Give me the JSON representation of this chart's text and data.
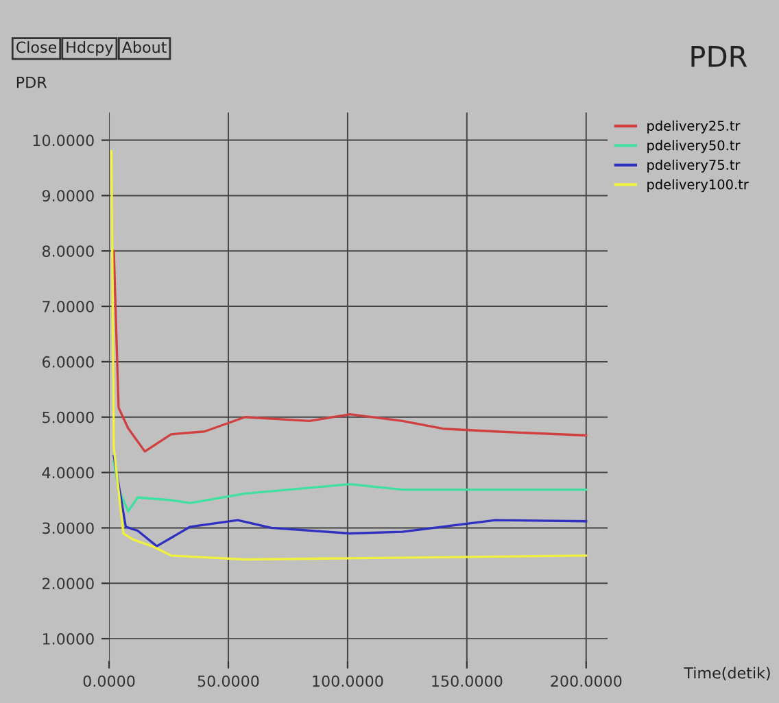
{
  "chart_data": {
    "type": "line",
    "title": "PDR",
    "ylabel": "PDR",
    "xlabel": "Time(detik)",
    "annotations": [
      "Close",
      "Hdcpy",
      "About"
    ],
    "xlim": [
      0,
      209
    ],
    "ylim": [
      0.6,
      10.5
    ],
    "xticks": [
      {
        "value": 0,
        "label": "0.0000"
      },
      {
        "value": 50,
        "label": "50.0000"
      },
      {
        "value": 100,
        "label": "100.0000"
      },
      {
        "value": 150,
        "label": "150.0000"
      },
      {
        "value": 200,
        "label": "200.0000"
      }
    ],
    "yticks": [
      {
        "value": 1,
        "label": "1.0000"
      },
      {
        "value": 2,
        "label": "2.0000"
      },
      {
        "value": 3,
        "label": "3.0000"
      },
      {
        "value": 4,
        "label": "4.0000"
      },
      {
        "value": 5,
        "label": "5.0000"
      },
      {
        "value": 6,
        "label": "6.0000"
      },
      {
        "value": 7,
        "label": "7.0000"
      },
      {
        "value": 8,
        "label": "8.0000"
      },
      {
        "value": 9,
        "label": "9.0000"
      },
      {
        "value": 10,
        "label": "10.0000"
      }
    ],
    "grid": true,
    "legend": "top right",
    "marker": "none",
    "line_style": "solid",
    "series": [
      {
        "name": "pdelivery25.tr",
        "color": "#d04040",
        "x": [
          2,
          4,
          8,
          15,
          26,
          40,
          57,
          84,
          101,
          123,
          140,
          162,
          200
        ],
        "values": [
          8.0,
          5.17,
          4.8,
          4.38,
          4.69,
          4.74,
          5.0,
          4.93,
          5.05,
          4.93,
          4.79,
          4.74,
          4.67
        ]
      },
      {
        "name": "pdelivery50.tr",
        "color": "#40e0a0",
        "x": [
          2,
          4,
          8,
          12,
          26,
          34,
          57,
          101,
          123,
          200
        ],
        "values": [
          4.2,
          3.7,
          3.3,
          3.55,
          3.5,
          3.45,
          3.62,
          3.79,
          3.69,
          3.69
        ]
      },
      {
        "name": "pdelivery75.tr",
        "color": "#3030c0",
        "x": [
          2,
          7,
          12,
          20,
          34,
          54,
          68,
          101,
          123,
          162,
          200
        ],
        "values": [
          4.3,
          3.02,
          2.95,
          2.67,
          3.02,
          3.14,
          3.0,
          2.9,
          2.93,
          3.14,
          3.12
        ]
      },
      {
        "name": "pdelivery100.tr",
        "color": "#f0f040",
        "x": [
          1,
          2,
          6,
          10,
          18,
          26,
          57,
          200
        ],
        "values": [
          9.8,
          4.45,
          2.9,
          2.79,
          2.67,
          2.5,
          2.43,
          2.5
        ]
      }
    ]
  }
}
